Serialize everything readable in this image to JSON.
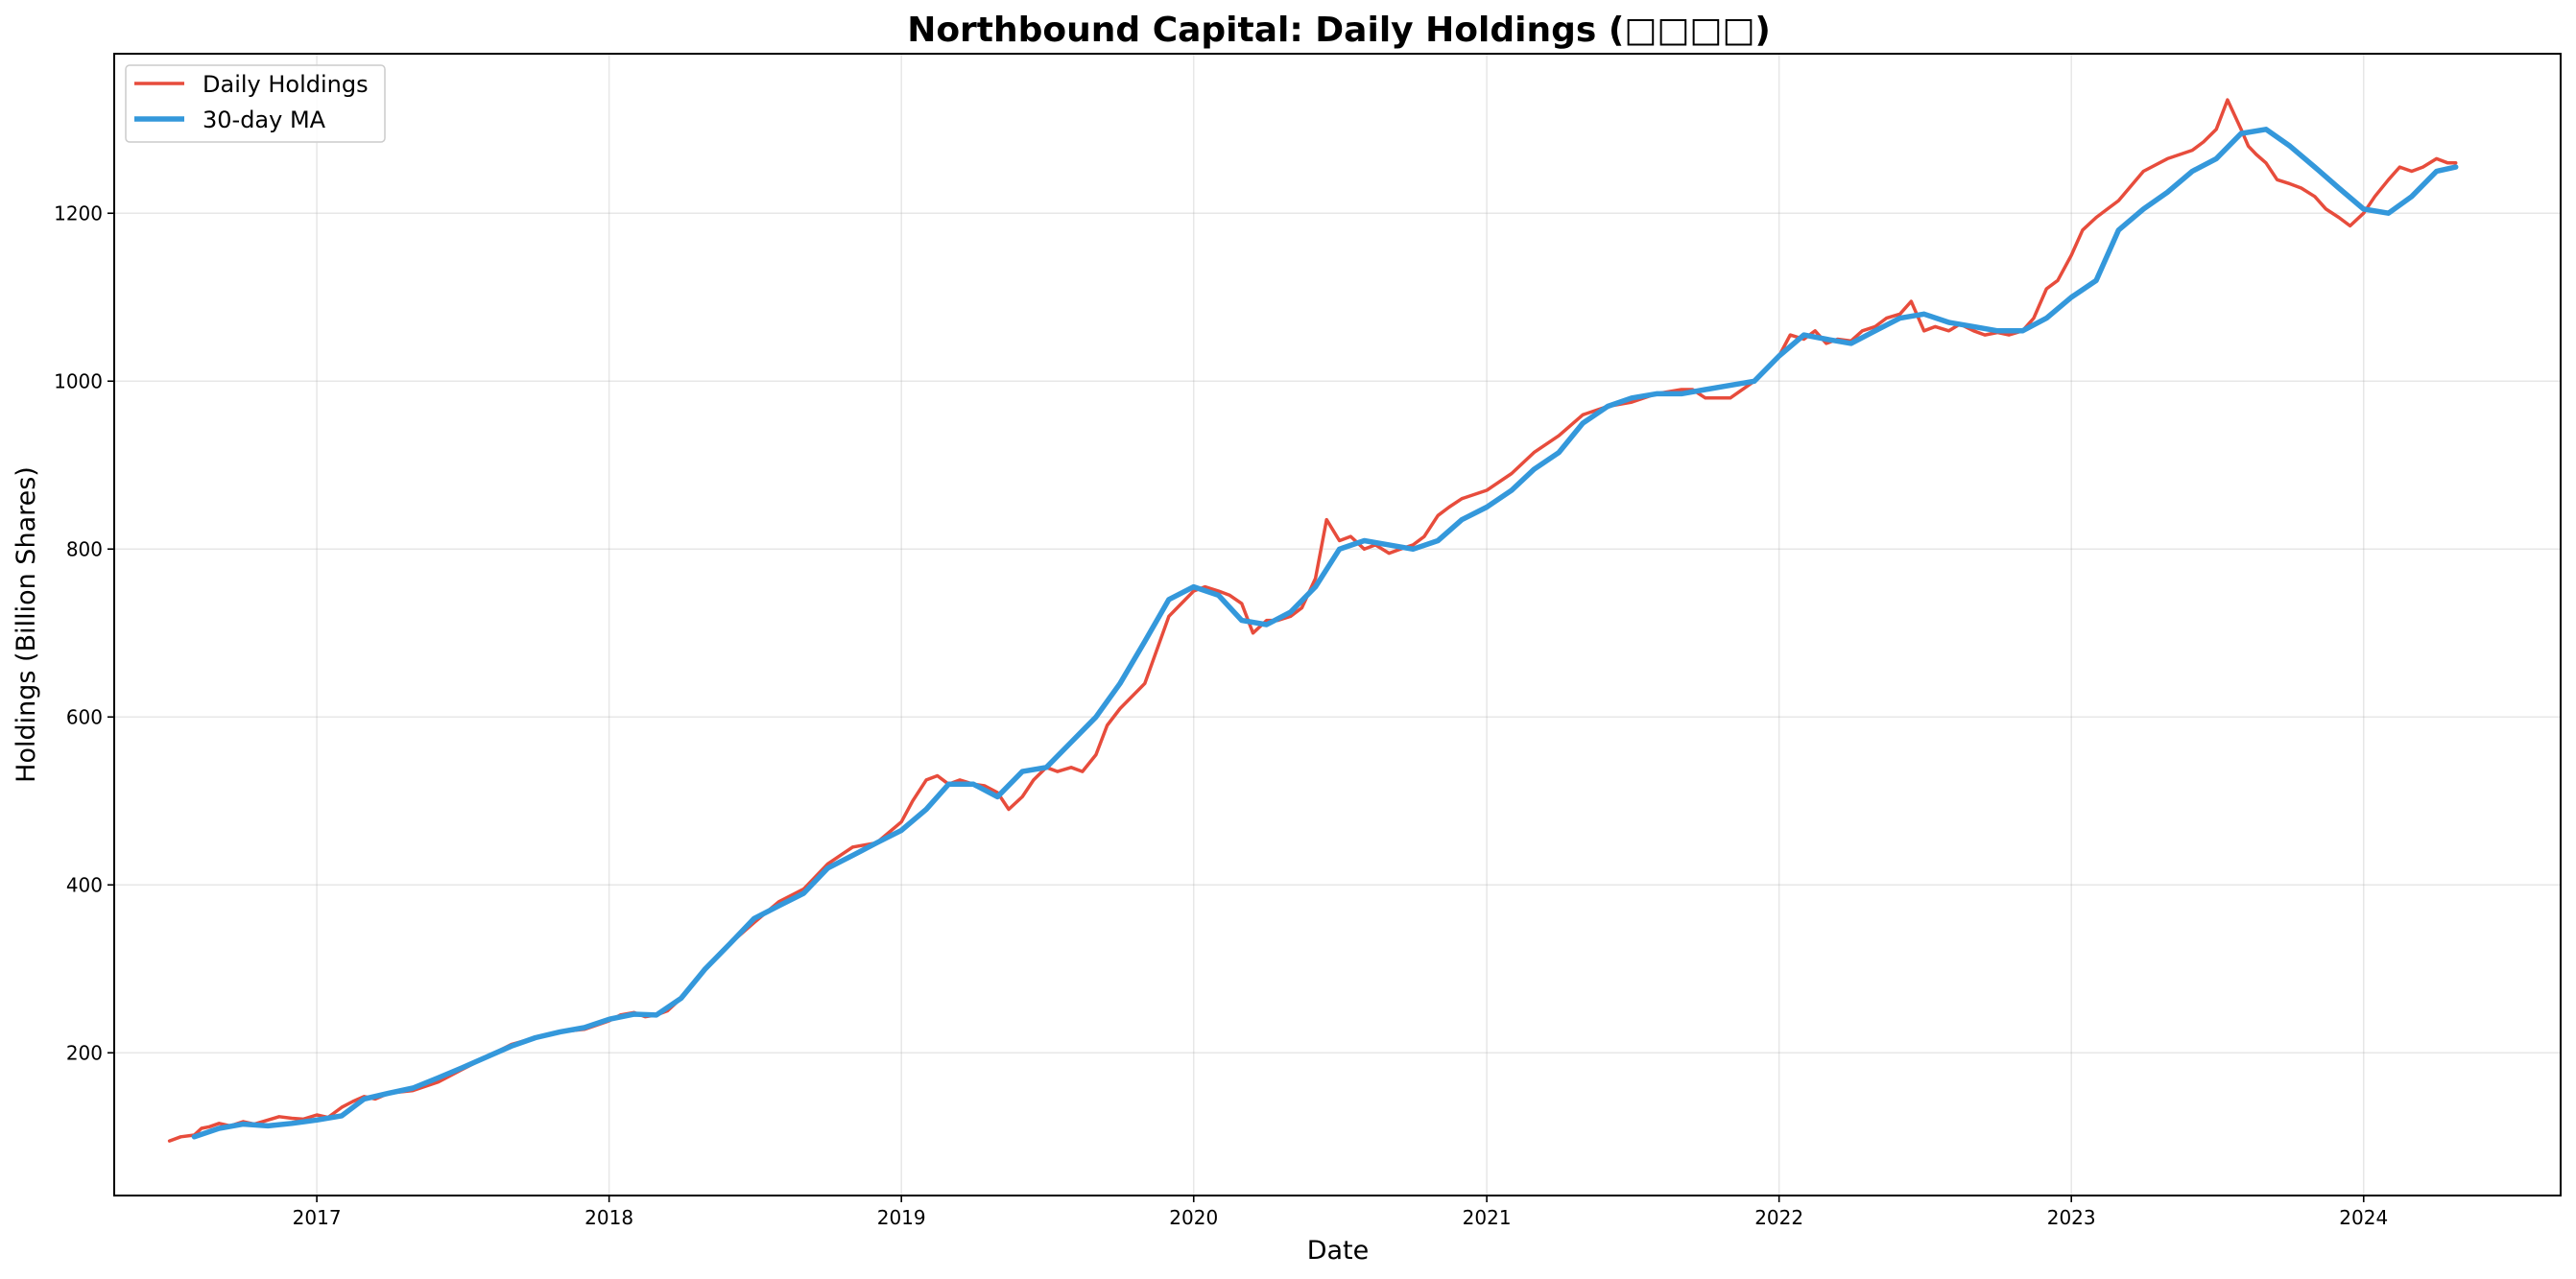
{
  "chart_data": {
    "type": "line",
    "title": "Northbound Capital: Daily Holdings (□□□□)",
    "xlabel": "Date",
    "ylabel": "Holdings (Billion Shares)",
    "x_axis_type": "date",
    "xlim": [
      "2016-04-23",
      "2024-09-03"
    ],
    "ylim": [
      30,
      1390
    ],
    "x_ticks": [
      "2017",
      "2018",
      "2019",
      "2020",
      "2021",
      "2022",
      "2023",
      "2024"
    ],
    "y_ticks": [
      200,
      400,
      600,
      800,
      1000,
      1200
    ],
    "grid": true,
    "legend_position": "top-left",
    "series": [
      {
        "name": "Daily Holdings",
        "color": "#e74c3c",
        "x": [
          "2016-07-01",
          "2016-07-15",
          "2016-08-01",
          "2016-08-10",
          "2016-08-20",
          "2016-09-01",
          "2016-09-15",
          "2016-10-01",
          "2016-10-15",
          "2016-11-01",
          "2016-11-15",
          "2016-12-01",
          "2016-12-15",
          "2017-01-01",
          "2017-01-15",
          "2017-02-01",
          "2017-02-15",
          "2017-03-01",
          "2017-03-15",
          "2017-04-01",
          "2017-05-01",
          "2017-06-01",
          "2017-07-01",
          "2017-08-01",
          "2017-09-01",
          "2017-10-01",
          "2017-11-01",
          "2017-12-01",
          "2018-01-01",
          "2018-01-15",
          "2018-02-01",
          "2018-02-15",
          "2018-03-01",
          "2018-03-15",
          "2018-04-01",
          "2018-05-01",
          "2018-06-01",
          "2018-07-01",
          "2018-08-01",
          "2018-09-01",
          "2018-10-01",
          "2018-11-01",
          "2018-12-01",
          "2019-01-01",
          "2019-01-15",
          "2019-02-01",
          "2019-02-15",
          "2019-03-01",
          "2019-03-15",
          "2019-04-01",
          "2019-04-15",
          "2019-05-01",
          "2019-05-15",
          "2019-06-01",
          "2019-06-15",
          "2019-07-01",
          "2019-07-15",
          "2019-08-01",
          "2019-08-15",
          "2019-09-01",
          "2019-09-15",
          "2019-10-01",
          "2019-11-01",
          "2019-12-01",
          "2020-01-01",
          "2020-01-15",
          "2020-02-01",
          "2020-02-15",
          "2020-03-01",
          "2020-03-15",
          "2020-04-01",
          "2020-04-15",
          "2020-05-01",
          "2020-05-15",
          "2020-06-01",
          "2020-06-15",
          "2020-07-01",
          "2020-07-15",
          "2020-08-01",
          "2020-08-15",
          "2020-09-01",
          "2020-09-15",
          "2020-10-01",
          "2020-10-15",
          "2020-11-01",
          "2020-11-15",
          "2020-12-01",
          "2021-01-01",
          "2021-02-01",
          "2021-03-01",
          "2021-04-01",
          "2021-05-01",
          "2021-06-01",
          "2021-07-01",
          "2021-08-01",
          "2021-09-01",
          "2021-09-15",
          "2021-10-01",
          "2021-11-01",
          "2021-12-01",
          "2022-01-01",
          "2022-01-15",
          "2022-02-01",
          "2022-02-15",
          "2022-03-01",
          "2022-03-15",
          "2022-04-01",
          "2022-04-15",
          "2022-05-01",
          "2022-05-15",
          "2022-06-01",
          "2022-06-15",
          "2022-07-01",
          "2022-07-15",
          "2022-08-01",
          "2022-08-15",
          "2022-09-01",
          "2022-09-15",
          "2022-10-01",
          "2022-10-15",
          "2022-11-01",
          "2022-11-15",
          "2022-12-01",
          "2022-12-15",
          "2023-01-01",
          "2023-01-15",
          "2023-02-01",
          "2023-02-15",
          "2023-03-01",
          "2023-04-01",
          "2023-05-01",
          "2023-06-01",
          "2023-06-15",
          "2023-07-01",
          "2023-07-15",
          "2023-08-01",
          "2023-08-10",
          "2023-08-20",
          "2023-09-01",
          "2023-09-15",
          "2023-10-01",
          "2023-10-15",
          "2023-11-01",
          "2023-11-15",
          "2023-12-01",
          "2023-12-15",
          "2024-01-01",
          "2024-01-15",
          "2024-02-01",
          "2024-02-15",
          "2024-03-01",
          "2024-03-15",
          "2024-04-01",
          "2024-04-15",
          "2024-04-25"
        ],
        "y": [
          95,
          100,
          102,
          110,
          112,
          116,
          113,
          118,
          115,
          120,
          124,
          122,
          121,
          126,
          123,
          135,
          142,
          148,
          145,
          152,
          155,
          165,
          180,
          195,
          210,
          218,
          225,
          228,
          238,
          245,
          248,
          243,
          245,
          250,
          265,
          300,
          330,
          355,
          380,
          395,
          425,
          445,
          450,
          475,
          500,
          525,
          530,
          520,
          525,
          520,
          518,
          510,
          490,
          505,
          525,
          540,
          535,
          540,
          535,
          555,
          590,
          610,
          640,
          720,
          750,
          755,
          750,
          745,
          735,
          700,
          715,
          715,
          720,
          730,
          765,
          835,
          810,
          815,
          800,
          805,
          795,
          800,
          805,
          815,
          840,
          850,
          860,
          870,
          890,
          915,
          935,
          960,
          970,
          975,
          985,
          990,
          990,
          980,
          980,
          1000,
          1030,
          1055,
          1050,
          1060,
          1045,
          1050,
          1048,
          1060,
          1065,
          1075,
          1080,
          1095,
          1060,
          1065,
          1060,
          1068,
          1060,
          1055,
          1058,
          1055,
          1060,
          1075,
          1110,
          1120,
          1150,
          1180,
          1195,
          1205,
          1215,
          1250,
          1265,
          1275,
          1285,
          1300,
          1335,
          1300,
          1280,
          1270,
          1260,
          1240,
          1235,
          1230,
          1220,
          1205,
          1195,
          1185,
          1200,
          1220,
          1240,
          1255,
          1250,
          1255,
          1265,
          1260,
          1260
        ]
      },
      {
        "name": "30-day MA",
        "color": "#3498db",
        "x": [
          "2016-08-01",
          "2016-09-01",
          "2016-10-01",
          "2016-11-01",
          "2016-12-01",
          "2017-01-01",
          "2017-02-01",
          "2017-03-01",
          "2017-04-01",
          "2017-05-01",
          "2017-06-01",
          "2017-07-01",
          "2017-08-01",
          "2017-09-01",
          "2017-10-01",
          "2017-11-01",
          "2017-12-01",
          "2018-01-01",
          "2018-02-01",
          "2018-03-01",
          "2018-04-01",
          "2018-05-01",
          "2018-06-01",
          "2018-07-01",
          "2018-08-01",
          "2018-09-01",
          "2018-10-01",
          "2018-11-01",
          "2018-12-01",
          "2019-01-01",
          "2019-02-01",
          "2019-03-01",
          "2019-04-01",
          "2019-05-01",
          "2019-06-01",
          "2019-07-01",
          "2019-08-01",
          "2019-09-01",
          "2019-10-01",
          "2019-11-01",
          "2019-12-01",
          "2020-01-01",
          "2020-02-01",
          "2020-03-01",
          "2020-04-01",
          "2020-05-01",
          "2020-06-01",
          "2020-07-01",
          "2020-08-01",
          "2020-09-01",
          "2020-10-01",
          "2020-11-01",
          "2020-12-01",
          "2021-01-01",
          "2021-02-01",
          "2021-03-01",
          "2021-04-01",
          "2021-05-01",
          "2021-06-01",
          "2021-07-01",
          "2021-08-01",
          "2021-09-01",
          "2021-10-01",
          "2021-11-01",
          "2021-12-01",
          "2022-01-01",
          "2022-02-01",
          "2022-03-01",
          "2022-04-01",
          "2022-05-01",
          "2022-06-01",
          "2022-07-01",
          "2022-08-01",
          "2022-09-01",
          "2022-10-01",
          "2022-11-01",
          "2022-12-01",
          "2023-01-01",
          "2023-02-01",
          "2023-03-01",
          "2023-04-01",
          "2023-05-01",
          "2023-06-01",
          "2023-07-01",
          "2023-08-01",
          "2023-09-01",
          "2023-10-01",
          "2023-11-01",
          "2023-12-01",
          "2024-01-01",
          "2024-02-01",
          "2024-03-01",
          "2024-04-01",
          "2024-04-25"
        ],
        "y": [
          100,
          110,
          115,
          113,
          116,
          120,
          125,
          145,
          152,
          158,
          170,
          182,
          195,
          208,
          218,
          225,
          230,
          240,
          246,
          245,
          265,
          300,
          330,
          360,
          375,
          390,
          420,
          435,
          450,
          465,
          490,
          520,
          520,
          505,
          535,
          540,
          570,
          600,
          640,
          690,
          740,
          755,
          745,
          715,
          710,
          725,
          755,
          800,
          810,
          805,
          800,
          810,
          835,
          850,
          870,
          895,
          915,
          950,
          970,
          980,
          985,
          985,
          990,
          995,
          1000,
          1030,
          1055,
          1050,
          1045,
          1060,
          1075,
          1080,
          1070,
          1065,
          1060,
          1060,
          1075,
          1100,
          1120,
          1180,
          1205,
          1225,
          1250,
          1265,
          1295,
          1300,
          1280,
          1255,
          1230,
          1205,
          1200,
          1220,
          1250,
          1255
        ]
      }
    ]
  }
}
